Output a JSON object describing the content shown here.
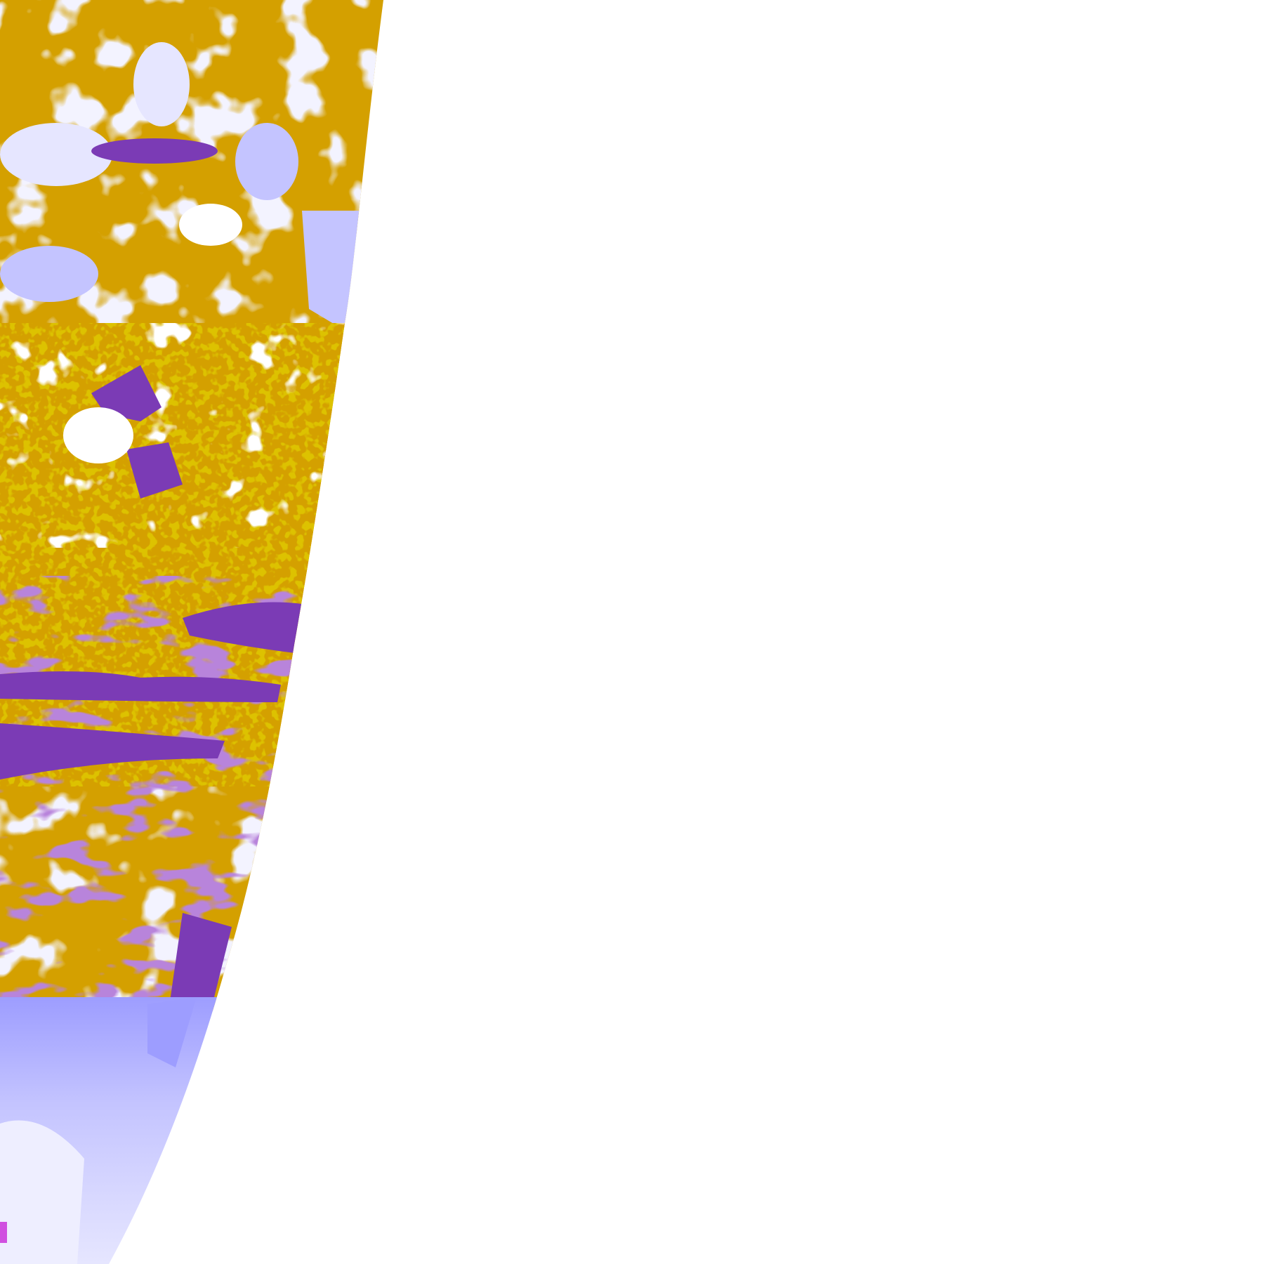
{
  "image": {
    "kind": "satellite cloud-type classification, western limb of Earth disk",
    "background": "#ffffff",
    "palette": {
      "low_cloud_gold": "#d4a000",
      "dark_gold": "#b88a00",
      "purple": "#7b3bb5",
      "magenta": "#d050e0",
      "lavender": "#c4c4ff",
      "light_lavender": "#e6e6ff",
      "blue_violet": "#9d9dff",
      "gray": "#a0a0a0",
      "clear": "#ffffff"
    }
  }
}
